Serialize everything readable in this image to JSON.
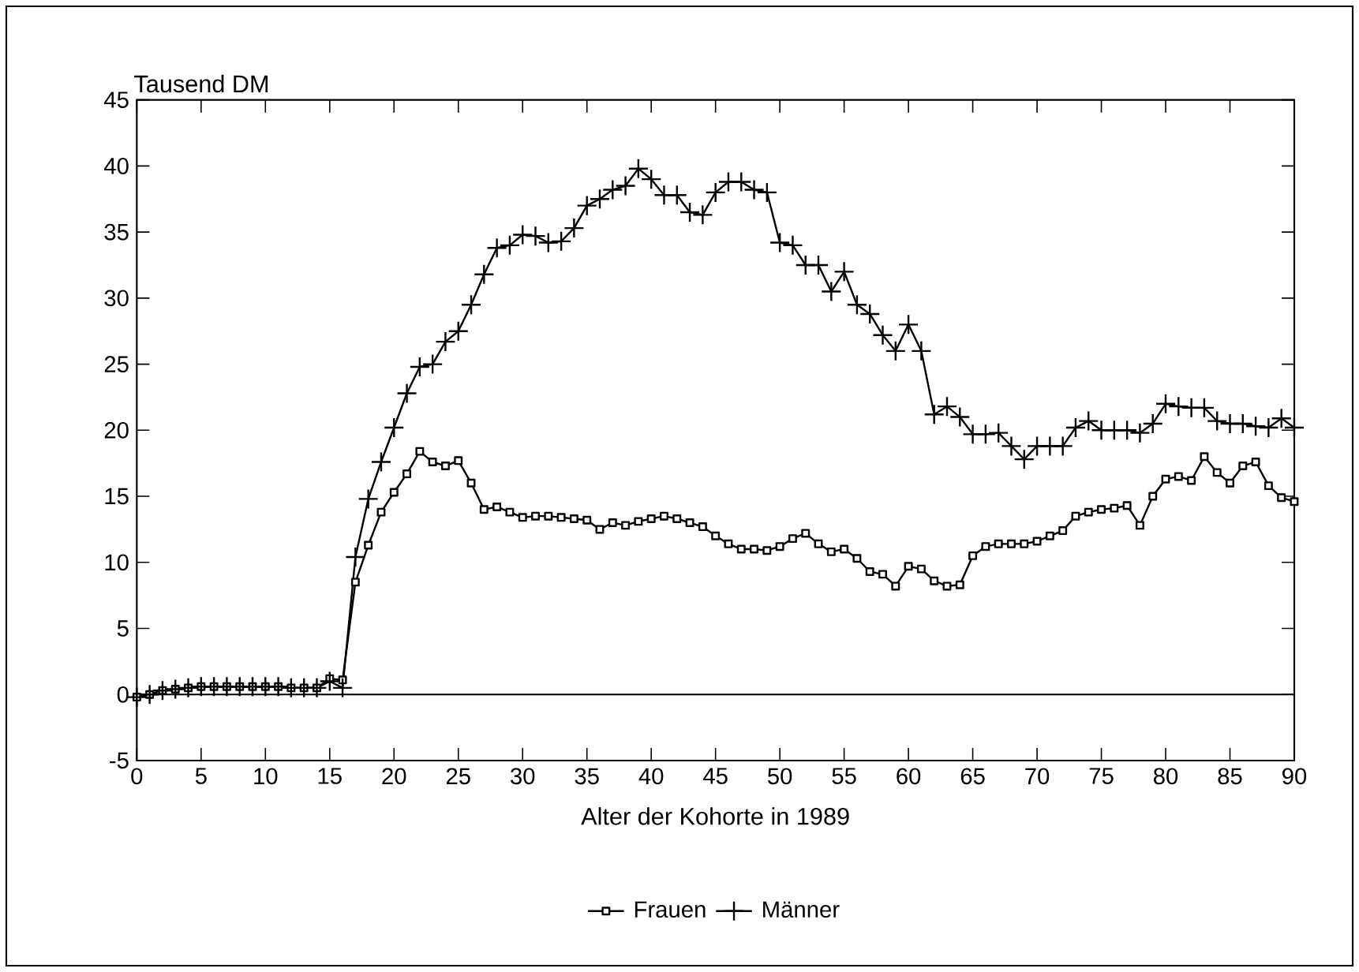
{
  "chart_data": {
    "type": "line",
    "xlabel": "Alter der Kohorte in 1989",
    "ylabel": "Tausend DM",
    "x": [
      0,
      1,
      2,
      3,
      4,
      5,
      6,
      7,
      8,
      9,
      10,
      11,
      12,
      13,
      14,
      15,
      16,
      17,
      18,
      19,
      20,
      21,
      22,
      23,
      24,
      25,
      26,
      27,
      28,
      29,
      30,
      31,
      32,
      33,
      34,
      35,
      36,
      37,
      38,
      39,
      40,
      41,
      42,
      43,
      44,
      45,
      46,
      47,
      48,
      49,
      50,
      51,
      52,
      53,
      54,
      55,
      56,
      57,
      58,
      59,
      60,
      61,
      62,
      63,
      64,
      65,
      66,
      67,
      68,
      69,
      70,
      71,
      72,
      73,
      74,
      75,
      76,
      77,
      78,
      79,
      80,
      81,
      82,
      83,
      84,
      85,
      86,
      87,
      88,
      89,
      90
    ],
    "series": [
      {
        "name": "Frauen",
        "color": "#000000",
        "marker": "square",
        "values": [
          -0.2,
          0,
          0.3,
          0.4,
          0.5,
          0.6,
          0.6,
          0.6,
          0.6,
          0.6,
          0.6,
          0.6,
          0.5,
          0.5,
          0.5,
          1.2,
          1.1,
          8.5,
          11.3,
          13.8,
          15.3,
          16.7,
          18.4,
          17.6,
          17.3,
          17.7,
          16.0,
          14.0,
          14.2,
          13.8,
          13.4,
          13.5,
          13.5,
          13.4,
          13.3,
          13.2,
          12.5,
          13.0,
          12.8,
          13.1,
          13.3,
          13.5,
          13.3,
          13.0,
          12.7,
          12.0,
          11.4,
          11.0,
          11.0,
          10.9,
          11.2,
          11.8,
          12.2,
          11.4,
          10.8,
          11.0,
          10.3,
          9.3,
          9.1,
          8.2,
          9.7,
          9.5,
          8.6,
          8.2,
          8.3,
          10.5,
          11.2,
          11.4,
          11.4,
          11.4,
          11.6,
          12.0,
          12.4,
          13.5,
          13.8,
          14.0,
          14.1,
          14.3,
          12.8,
          15.0,
          16.3,
          16.5,
          16.2,
          18.0,
          16.8,
          16.0,
          17.3,
          17.6,
          15.8,
          14.9,
          14.6
        ]
      },
      {
        "name": "Männer",
        "color": "#000000",
        "marker": "cross",
        "values": [
          -0.2,
          0,
          0.3,
          0.4,
          0.5,
          0.6,
          0.6,
          0.6,
          0.6,
          0.6,
          0.6,
          0.6,
          0.5,
          0.5,
          0.5,
          1.0,
          0.5,
          10.4,
          14.8,
          17.6,
          20.2,
          22.8,
          24.8,
          25.0,
          26.7,
          27.5,
          29.5,
          31.8,
          33.8,
          34.0,
          34.8,
          34.7,
          34.2,
          34.3,
          35.3,
          37.0,
          37.5,
          38.2,
          38.5,
          39.8,
          39.0,
          37.8,
          37.8,
          36.5,
          36.3,
          38.0,
          38.8,
          38.8,
          38.2,
          38.0,
          34.2,
          34.0,
          32.5,
          32.5,
          30.5,
          32.0,
          29.5,
          28.8,
          27.2,
          26.0,
          28.0,
          26.0,
          21.2,
          21.8,
          21.0,
          19.7,
          19.7,
          19.8,
          18.8,
          17.8,
          18.8,
          18.8,
          18.8,
          20.2,
          20.7,
          20.0,
          20.0,
          20.0,
          19.8,
          20.5,
          22.0,
          21.8,
          21.7,
          21.7,
          20.7,
          20.5,
          20.5,
          20.3,
          20.2,
          20.9,
          20.2
        ]
      }
    ],
    "xlim": [
      0,
      90
    ],
    "xticks": [
      0,
      5,
      10,
      15,
      20,
      25,
      30,
      35,
      40,
      45,
      50,
      55,
      60,
      65,
      70,
      75,
      80,
      85,
      90
    ],
    "ylim": [
      -5,
      45
    ],
    "yticks": [
      -5,
      0,
      5,
      10,
      15,
      20,
      25,
      30,
      35,
      40,
      45
    ],
    "ref_lines": [
      {
        "axis": "y",
        "value": 0,
        "color": "#000000"
      }
    ],
    "grid": false,
    "legend": "bottom"
  }
}
